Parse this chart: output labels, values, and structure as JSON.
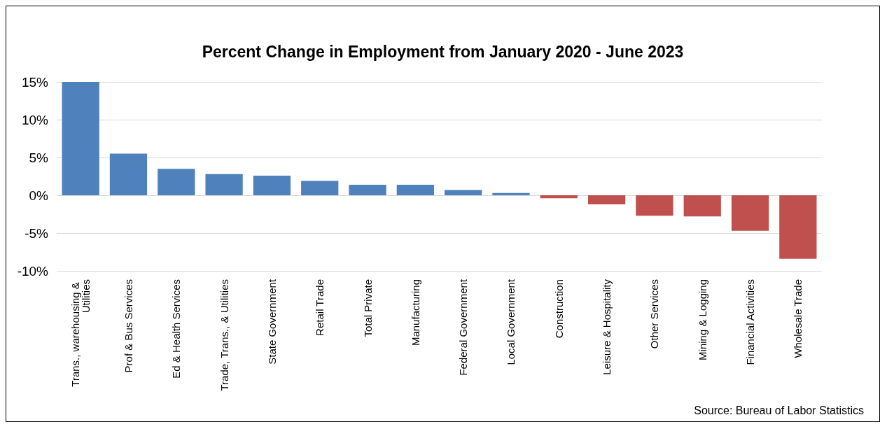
{
  "chart_data": {
    "type": "bar",
    "title": "Percent Change in Employment from January 2020 - June 2023",
    "categories": [
      "Trans., warehousing & Utilities",
      "Prof & Bus Services",
      "Ed & Health Services",
      "Trade, Trans., & Utilities",
      "State Government",
      "Retail Trade",
      "Total Private",
      "Manufacturing",
      "Federal Government",
      "Local Government",
      "Construction",
      "Leisure & Hospitality",
      "Other Services",
      "Mining & Logging",
      "Financial Activities",
      "Wholesale Trade"
    ],
    "values": [
      15.0,
      5.5,
      3.5,
      2.8,
      2.6,
      1.9,
      1.4,
      1.4,
      0.7,
      0.3,
      -0.4,
      -1.2,
      -2.7,
      -2.8,
      -4.7,
      -8.4
    ],
    "colors": [
      "#4f81bd",
      "#4f81bd",
      "#4f81bd",
      "#4f81bd",
      "#4f81bd",
      "#4f81bd",
      "#4f81bd",
      "#4f81bd",
      "#4f81bd",
      "#4f81bd",
      "#c0504d",
      "#c0504d",
      "#c0504d",
      "#c0504d",
      "#c0504d",
      "#c0504d"
    ],
    "ylim": [
      -10,
      15
    ],
    "yticks": [
      {
        "value": -10,
        "label": "-10%"
      },
      {
        "value": -5,
        "label": "-5%"
      },
      {
        "value": 0,
        "label": "0%"
      },
      {
        "value": 5,
        "label": "5%"
      },
      {
        "value": 10,
        "label": "10%"
      },
      {
        "value": 15,
        "label": "15%"
      }
    ],
    "grid": "y",
    "annotations": [
      "Source: Bureau of Labor Statistics"
    ]
  }
}
